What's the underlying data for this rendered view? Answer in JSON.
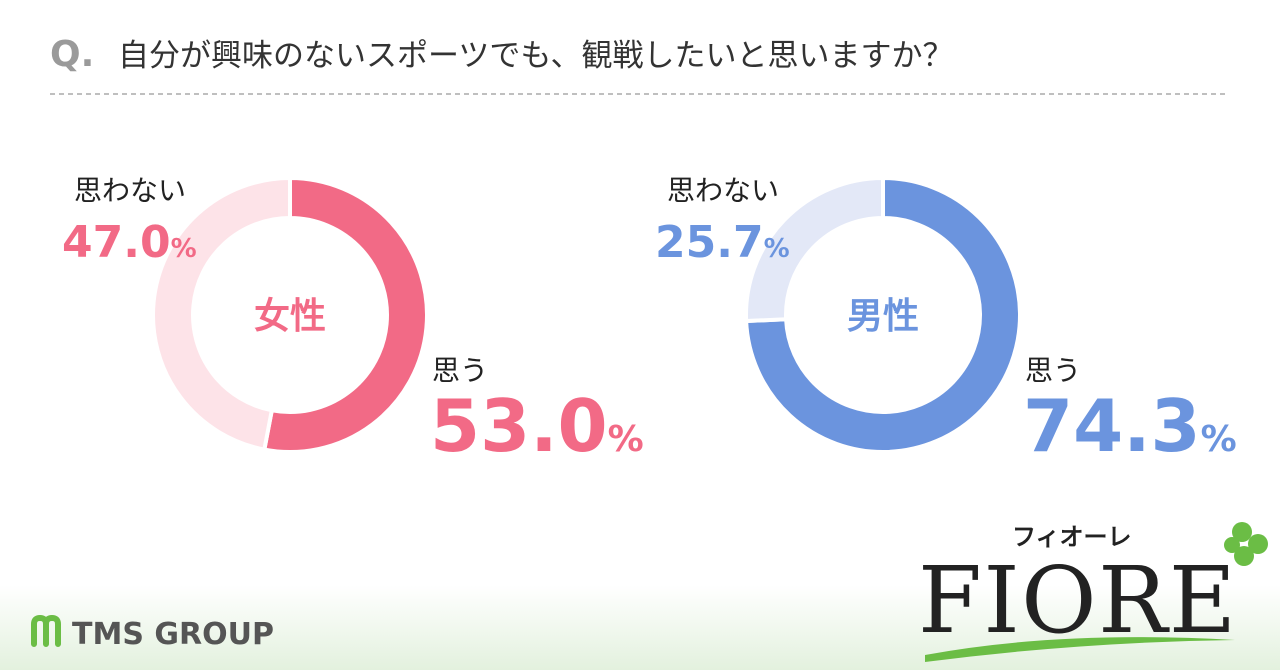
{
  "header": {
    "q": "Q.",
    "question": "自分が興味のないスポーツでも、観戦したいと思いますか？"
  },
  "chart_data": [
    {
      "type": "pie",
      "title": "女性",
      "categories": [
        "思う",
        "思わない"
      ],
      "values": [
        53.0,
        47.0
      ],
      "value_labels": [
        "53.0%",
        "47.0%"
      ],
      "colors": [
        "#f26a86",
        "#fde3e8"
      ],
      "title_color": "#f26a86"
    },
    {
      "type": "pie",
      "title": "男性",
      "categories": [
        "思う",
        "思わない"
      ],
      "values": [
        74.3,
        25.7
      ],
      "value_labels": [
        "74.3%",
        "25.7%"
      ],
      "colors": [
        "#6b94de",
        "#e3e8f7"
      ],
      "title_color": "#6b94de"
    }
  ],
  "footer": {
    "group": "TMS GROUP",
    "brand_kana": "フィオーレ",
    "brand": "FIORE"
  }
}
